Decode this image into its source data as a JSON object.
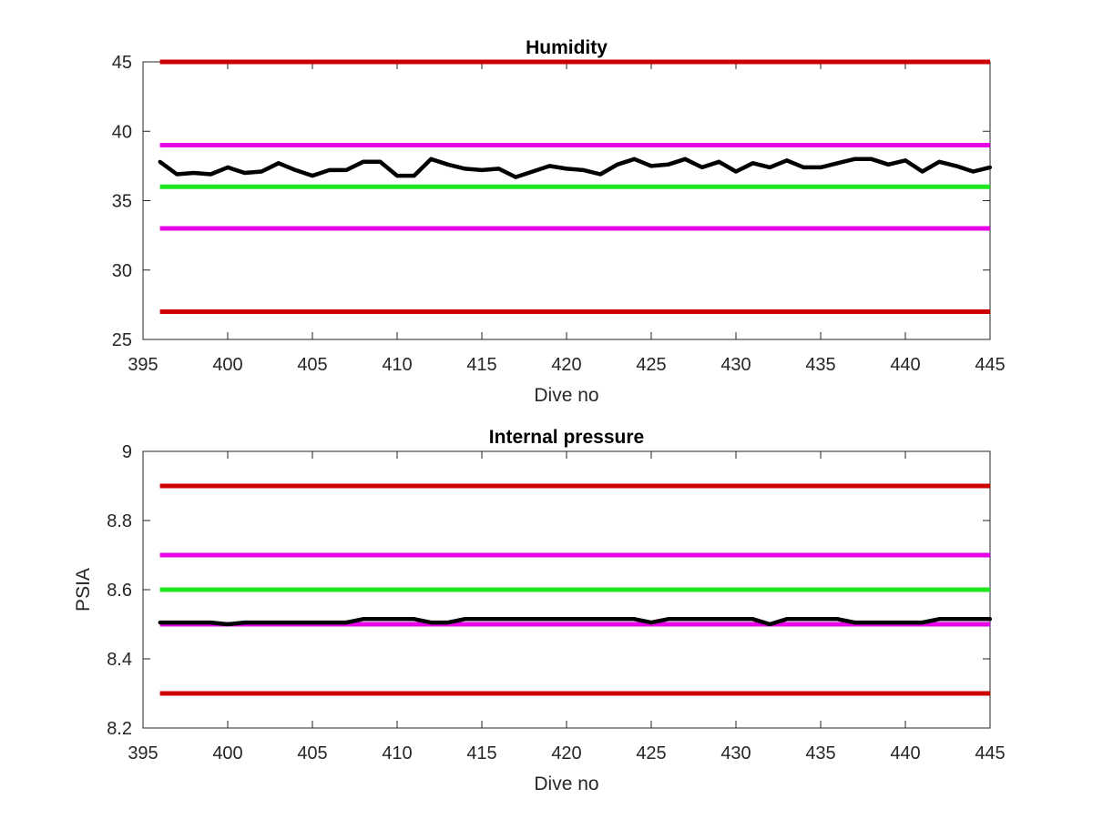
{
  "chart_data": [
    {
      "type": "line",
      "title": "Humidity",
      "xlabel": "Dive no",
      "ylabel": "",
      "xlim": [
        395,
        445
      ],
      "ylim": [
        25,
        45
      ],
      "xticks": [
        "395",
        "400",
        "405",
        "410",
        "415",
        "420",
        "425",
        "430",
        "435",
        "440",
        "445"
      ],
      "yticks": [
        "25",
        "30",
        "35",
        "40",
        "45"
      ],
      "grid": false,
      "limits": [
        {
          "value": 45,
          "color": "#cc0000"
        },
        {
          "value": 39,
          "color": "#e600e6"
        },
        {
          "value": 36,
          "color": "#1ee61e"
        },
        {
          "value": 33,
          "color": "#e600e6"
        },
        {
          "value": 27,
          "color": "#cc0000"
        }
      ],
      "series": [
        {
          "color": "#000000",
          "x": [
            396,
            397,
            398,
            399,
            400,
            401,
            402,
            403,
            404,
            405,
            406,
            407,
            408,
            409,
            410,
            411,
            412,
            413,
            414,
            415,
            416,
            417,
            418,
            419,
            420,
            421,
            422,
            423,
            424,
            425,
            426,
            427,
            428,
            429,
            430,
            431,
            432,
            433,
            434,
            435,
            436,
            437,
            438,
            439,
            440,
            441,
            442,
            443,
            444,
            445
          ],
          "values": [
            37.8,
            36.9,
            37.0,
            36.9,
            37.4,
            37.0,
            37.1,
            37.7,
            37.2,
            36.8,
            37.2,
            37.2,
            37.8,
            37.8,
            36.8,
            36.8,
            38.0,
            37.6,
            37.3,
            37.2,
            37.3,
            36.7,
            37.1,
            37.5,
            37.3,
            37.2,
            36.9,
            37.6,
            38.0,
            37.5,
            37.6,
            38.0,
            37.4,
            37.8,
            37.1,
            37.7,
            37.4,
            37.9,
            37.4,
            37.4,
            37.7,
            38.0,
            38.0,
            37.6,
            37.9,
            37.1,
            37.8,
            37.5,
            37.1,
            37.4
          ]
        }
      ]
    },
    {
      "type": "line",
      "title": "Internal pressure",
      "xlabel": "Dive no",
      "ylabel": "PSIA",
      "xlim": [
        395,
        445
      ],
      "ylim": [
        8.2,
        9.0
      ],
      "xticks": [
        "395",
        "400",
        "405",
        "410",
        "415",
        "420",
        "425",
        "430",
        "435",
        "440",
        "445"
      ],
      "yticks": [
        "8.2",
        "8.4",
        "8.6",
        "8.8",
        "9"
      ],
      "grid": false,
      "limits": [
        {
          "value": 8.9,
          "color": "#cc0000"
        },
        {
          "value": 8.7,
          "color": "#e600e6"
        },
        {
          "value": 8.6,
          "color": "#1ee61e"
        },
        {
          "value": 8.5,
          "color": "#e600e6"
        },
        {
          "value": 8.3,
          "color": "#cc0000"
        }
      ],
      "series": [
        {
          "color": "#000000",
          "x": [
            396,
            397,
            398,
            399,
            400,
            401,
            402,
            403,
            404,
            405,
            406,
            407,
            408,
            409,
            410,
            411,
            412,
            413,
            414,
            415,
            416,
            417,
            418,
            419,
            420,
            421,
            422,
            423,
            424,
            425,
            426,
            427,
            428,
            429,
            430,
            431,
            432,
            433,
            434,
            435,
            436,
            437,
            438,
            439,
            440,
            441,
            442,
            443,
            444,
            445
          ],
          "values": [
            8.505,
            8.505,
            8.505,
            8.505,
            8.5,
            8.505,
            8.505,
            8.505,
            8.505,
            8.505,
            8.505,
            8.505,
            8.515,
            8.515,
            8.515,
            8.515,
            8.505,
            8.505,
            8.515,
            8.515,
            8.515,
            8.515,
            8.515,
            8.515,
            8.515,
            8.515,
            8.515,
            8.515,
            8.515,
            8.505,
            8.515,
            8.515,
            8.515,
            8.515,
            8.515,
            8.515,
            8.5,
            8.515,
            8.515,
            8.515,
            8.515,
            8.505,
            8.505,
            8.505,
            8.505,
            8.505,
            8.515,
            8.515,
            8.515,
            8.515
          ]
        }
      ]
    }
  ]
}
